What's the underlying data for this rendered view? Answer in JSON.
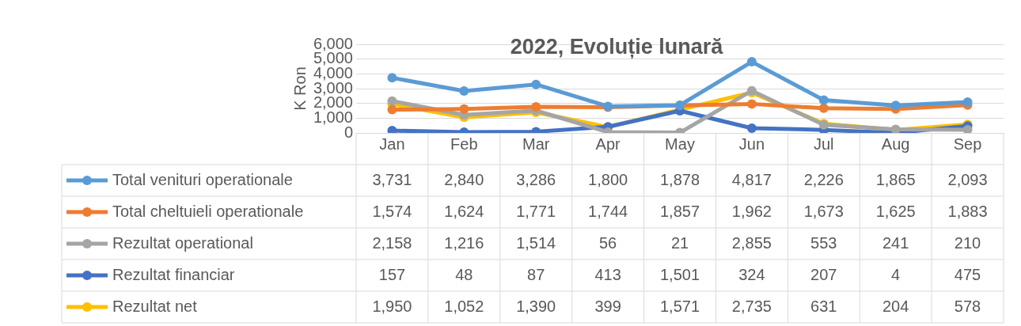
{
  "chart_data": {
    "type": "line",
    "title": "2022, Evoluție lunară",
    "ylabel": "K Ron",
    "categories": [
      "Jan",
      "Feb",
      "Mar",
      "Apr",
      "May",
      "Jun",
      "Jul",
      "Aug",
      "Sep"
    ],
    "series": [
      {
        "name": "Total venituri operationale",
        "color": "#5b9bd5",
        "values": [
          3731,
          2840,
          3286,
          1800,
          1878,
          4817,
          2226,
          1865,
          2093
        ],
        "value_labels": [
          "3,731",
          "2,840",
          "3,286",
          "1,800",
          "1,878",
          "4,817",
          "2,226",
          "1,865",
          "2,093"
        ]
      },
      {
        "name": "Total cheltuieli operationale",
        "color": "#ed7d31",
        "values": [
          1574,
          1624,
          1771,
          1744,
          1857,
          1962,
          1673,
          1625,
          1883
        ],
        "value_labels": [
          "1,574",
          "1,624",
          "1,771",
          "1,744",
          "1,857",
          "1,962",
          "1,673",
          "1,625",
          "1,883"
        ]
      },
      {
        "name": "Rezultat operational",
        "color": "#a5a5a5",
        "values": [
          2158,
          1216,
          1514,
          56,
          21,
          2855,
          553,
          241,
          210
        ],
        "value_labels": [
          "2,158",
          "1,216",
          "1,514",
          "56",
          "21",
          "2,855",
          "553",
          "241",
          "210"
        ]
      },
      {
        "name": "Rezultat financiar",
        "color": "#4472c4",
        "values": [
          157,
          48,
          87,
          413,
          1501,
          324,
          207,
          4,
          475
        ],
        "value_labels": [
          "157",
          "48",
          "87",
          "413",
          "1,501",
          "324",
          "207",
          "4",
          "475"
        ]
      },
      {
        "name": "Rezultat net",
        "color": "#ffc000",
        "values": [
          1950,
          1052,
          1390,
          399,
          1571,
          2735,
          631,
          204,
          578
        ],
        "value_labels": [
          "1,950",
          "1,052",
          "1,390",
          "399",
          "1,571",
          "2,735",
          "631",
          "204",
          "578"
        ]
      }
    ],
    "ylim": [
      0,
      6000
    ],
    "yticks": [
      0,
      {
        "value": 1000,
        "label": "1,000"
      },
      {
        "value": 2000,
        "label": "2,000"
      },
      {
        "value": 3000,
        "label": "3,000"
      },
      {
        "value": 4000,
        "label": "4,000"
      },
      {
        "value": 5000,
        "label": "5,000"
      },
      {
        "value": 6000,
        "label": "6,000"
      }
    ],
    "grid": "y",
    "marker": "circle",
    "line_style": "solid",
    "legend": "bottom left"
  }
}
